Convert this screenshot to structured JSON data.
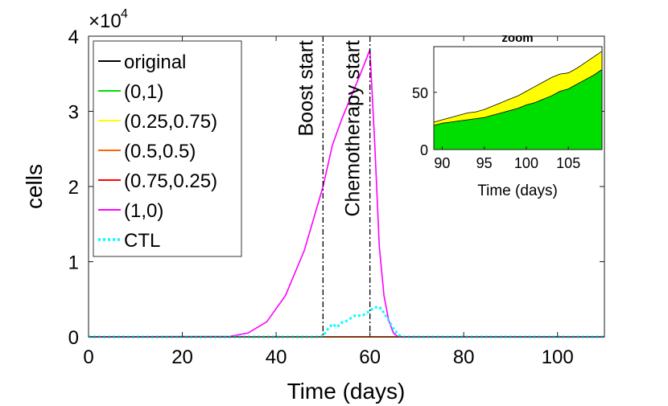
{
  "chart_data": [
    {
      "type": "line",
      "xlabel": "Time (days)",
      "ylabel": "cells",
      "xlim": [
        0,
        110
      ],
      "ylim": [
        0,
        40000
      ],
      "x_ticks": [
        "0",
        "20",
        "40",
        "60",
        "80",
        "100"
      ],
      "y_ticks": [
        "0",
        "1",
        "2",
        "3",
        "4"
      ],
      "y_exponent": {
        "base": "×10",
        "power": "4"
      },
      "grid": false,
      "legend_position": "top-left",
      "annotations": [
        {
          "label": "Boost start",
          "x": 50
        },
        {
          "label": "Chemotherapy start",
          "x": 60
        }
      ],
      "series": [
        {
          "name": "original",
          "color": "#000000",
          "style": "solid",
          "x": [
            0,
            50,
            60,
            110
          ],
          "y": [
            0,
            0,
            0,
            0
          ]
        },
        {
          "name": "(0,1)",
          "color": "#00dd00",
          "style": "solid",
          "x": [
            0,
            50,
            60,
            110
          ],
          "y": [
            0,
            0,
            0,
            0
          ]
        },
        {
          "name": "(0.25,0.75)",
          "color": "#ffff00",
          "style": "solid",
          "x": [
            0,
            50,
            60,
            110
          ],
          "y": [
            0,
            0,
            0,
            0
          ]
        },
        {
          "name": "(0.5,0.5)",
          "color": "#ff6600",
          "style": "solid",
          "x": [
            0,
            50,
            60,
            110
          ],
          "y": [
            0,
            0,
            0,
            0
          ]
        },
        {
          "name": "(0.75,0.25)",
          "color": "#ff0000",
          "style": "solid",
          "x": [
            0,
            50,
            60,
            110
          ],
          "y": [
            0,
            0,
            0,
            0
          ]
        },
        {
          "name": "(1,0)",
          "color": "#ff00ff",
          "style": "solid",
          "x": [
            0,
            30,
            34,
            38,
            42,
            46,
            50,
            52,
            54,
            56,
            58,
            60,
            61,
            62,
            63,
            64,
            65,
            66,
            110
          ],
          "y": [
            0,
            50,
            500,
            2000,
            5500,
            11500,
            20000,
            25500,
            29000,
            32000,
            35000,
            38200,
            26000,
            12000,
            5500,
            2200,
            500,
            0,
            0
          ]
        },
        {
          "name": "CTL",
          "color": "#00ffff",
          "style": "dotted",
          "x": [
            0,
            49.5,
            50,
            51,
            52,
            53,
            54,
            55,
            56,
            57,
            58,
            59,
            60,
            61,
            62,
            63,
            64,
            65,
            66,
            67,
            110
          ],
          "y": [
            0,
            0,
            150,
            1000,
            1700,
            1300,
            1900,
            2100,
            2500,
            2900,
            2800,
            3000,
            3500,
            3900,
            4000,
            3200,
            2200,
            1100,
            300,
            0,
            0
          ]
        }
      ]
    },
    {
      "type": "area",
      "title": "zoom",
      "xlabel": "Time (days)",
      "ylabel": "",
      "xlim": [
        89,
        109
      ],
      "ylim": [
        0,
        90
      ],
      "x_ticks": [
        "90",
        "95",
        "100",
        "105"
      ],
      "y_ticks": [
        "0",
        "50"
      ],
      "series": [
        {
          "name": "green",
          "color": "#00dd00",
          "x": [
            89,
            90,
            91,
            92,
            93,
            94,
            95,
            96,
            97,
            98,
            99,
            100,
            101,
            102,
            103,
            104,
            105,
            106,
            107,
            108,
            109
          ],
          "y": [
            21,
            23,
            24,
            25,
            26,
            27,
            28,
            30,
            32,
            34,
            36,
            39,
            41,
            44,
            47,
            51,
            53,
            57,
            61,
            65,
            70
          ]
        },
        {
          "name": "yellow",
          "color": "#ffff00",
          "x": [
            89,
            90,
            91,
            92,
            93,
            94,
            95,
            96,
            97,
            98,
            99,
            100,
            101,
            102,
            103,
            104,
            105,
            106,
            107,
            108,
            109
          ],
          "y": [
            24,
            26,
            28,
            30,
            32,
            33,
            35,
            38,
            41,
            44,
            47,
            51,
            55,
            59,
            63,
            66,
            67,
            71,
            76,
            81,
            86
          ]
        }
      ]
    }
  ]
}
